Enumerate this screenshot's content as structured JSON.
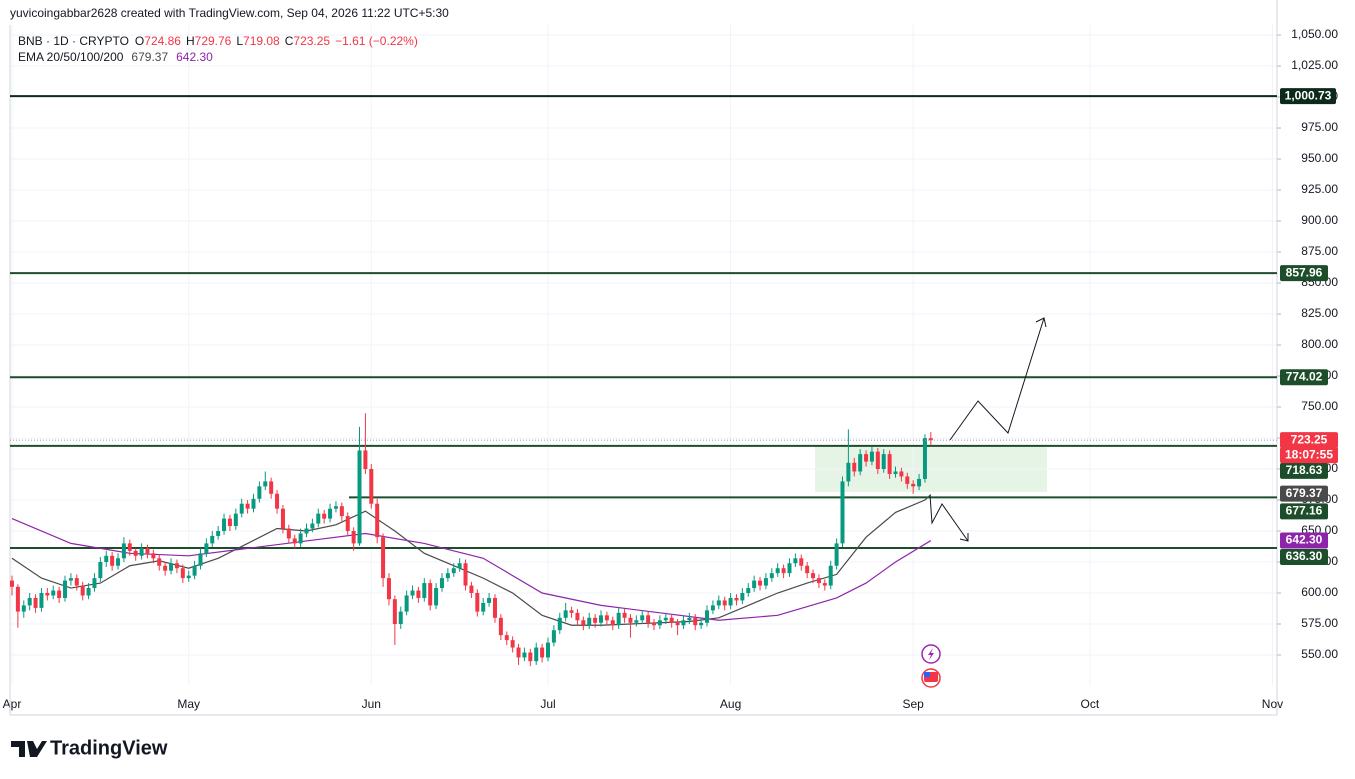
{
  "header": {
    "credit": "yuvicoingabbar2628 created with TradingView.com, Sep 04, 2026 11:22 UTC+5:30",
    "symbol": "BNB · 1D · CRYPTO",
    "ohlc": [
      {
        "key": "O",
        "value": "724.86"
      },
      {
        "key": "H",
        "value": "729.76"
      },
      {
        "key": "L",
        "value": "719.08"
      },
      {
        "key": "C",
        "value": "723.25"
      }
    ],
    "change": "−1.61 (−0.22%)",
    "ema_label": "EMA 20/50/100/200",
    "ema_values": [
      "679.37",
      "642.30"
    ],
    "brand": "TradingView"
  },
  "chart_data": {
    "type": "candlestick",
    "grid": true,
    "up_color": "#089981",
    "down_color": "#f23645",
    "xlim": [
      -0.34,
      214.77
    ],
    "ylim": [
      525.8,
      1058.1
    ],
    "xticks": [
      {
        "value": 0,
        "label": "Apr"
      },
      {
        "value": 30,
        "label": "May"
      },
      {
        "value": 61,
        "label": "Jun"
      },
      {
        "value": 91,
        "label": "Jul"
      },
      {
        "value": 122,
        "label": "Aug"
      },
      {
        "value": 153,
        "label": "Sep"
      },
      {
        "value": 183,
        "label": "Oct"
      },
      {
        "value": 214,
        "label": "Nov"
      }
    ],
    "yticks": [
      {
        "value": 550,
        "label": "550.00"
      },
      {
        "value": 575,
        "label": "575.00"
      },
      {
        "value": 600,
        "label": "600.00"
      },
      {
        "value": 625,
        "label": "625.00"
      },
      {
        "value": 650,
        "label": "650.00"
      },
      {
        "value": 675,
        "label": "675.00"
      },
      {
        "value": 700,
        "label": "700.00"
      },
      {
        "value": 725,
        "label": "725.00"
      },
      {
        "value": 750,
        "label": "750.00"
      },
      {
        "value": 775,
        "label": "775.00"
      },
      {
        "value": 800,
        "label": "800.00"
      },
      {
        "value": 825,
        "label": "825.00"
      },
      {
        "value": 850,
        "label": "850.00"
      },
      {
        "value": 875,
        "label": "875.00"
      },
      {
        "value": 900,
        "label": "900.00"
      },
      {
        "value": 925,
        "label": "925.00"
      },
      {
        "value": 950,
        "label": "950.00"
      },
      {
        "value": 975,
        "label": "975.00"
      },
      {
        "value": 1000,
        "label": "1,000.00"
      },
      {
        "value": 1025,
        "label": "1,025.00"
      },
      {
        "value": 1050,
        "label": "1,050.00"
      }
    ],
    "ohlc": [
      [
        610,
        614,
        598,
        605
      ],
      [
        605,
        607,
        572,
        585
      ],
      [
        585,
        594,
        580,
        590
      ],
      [
        590,
        600,
        586,
        596
      ],
      [
        596,
        599,
        584,
        588
      ],
      [
        588,
        604,
        585,
        600
      ],
      [
        600,
        604,
        594,
        598
      ],
      [
        598,
        606,
        595,
        602
      ],
      [
        602,
        605,
        592,
        596
      ],
      [
        596,
        614,
        593,
        610
      ],
      [
        610,
        616,
        606,
        612
      ],
      [
        612,
        615,
        602,
        606
      ],
      [
        606,
        609,
        594,
        598
      ],
      [
        598,
        608,
        595,
        604
      ],
      [
        604,
        616,
        601,
        612
      ],
      [
        612,
        629,
        609,
        625
      ],
      [
        625,
        634,
        621,
        630
      ],
      [
        630,
        633,
        618,
        622
      ],
      [
        622,
        632,
        619,
        628
      ],
      [
        628,
        645,
        625,
        640
      ],
      [
        640,
        643,
        630,
        634
      ],
      [
        634,
        636,
        626,
        630
      ],
      [
        630,
        640,
        627,
        636
      ],
      [
        636,
        639,
        628,
        632
      ],
      [
        632,
        635,
        624,
        628
      ],
      [
        628,
        631,
        618,
        622
      ],
      [
        622,
        625,
        614,
        618
      ],
      [
        618,
        628,
        615,
        624
      ],
      [
        624,
        627,
        616,
        620
      ],
      [
        620,
        623,
        608,
        612
      ],
      [
        612,
        618,
        609,
        614
      ],
      [
        614,
        626,
        611,
        622
      ],
      [
        622,
        636,
        619,
        632
      ],
      [
        632,
        644,
        629,
        640
      ],
      [
        640,
        650,
        637,
        646
      ],
      [
        646,
        654,
        643,
        650
      ],
      [
        650,
        664,
        647,
        660
      ],
      [
        660,
        663,
        650,
        654
      ],
      [
        654,
        668,
        651,
        664
      ],
      [
        664,
        676,
        661,
        672
      ],
      [
        672,
        675,
        664,
        668
      ],
      [
        668,
        680,
        665,
        676
      ],
      [
        676,
        690,
        673,
        686
      ],
      [
        686,
        698,
        683,
        690
      ],
      [
        690,
        693,
        676,
        680
      ],
      [
        680,
        683,
        664,
        668
      ],
      [
        668,
        671,
        648,
        652
      ],
      [
        652,
        655,
        640,
        644
      ],
      [
        644,
        647,
        636,
        640
      ],
      [
        640,
        652,
        637,
        648
      ],
      [
        648,
        656,
        645,
        652
      ],
      [
        652,
        660,
        649,
        656
      ],
      [
        656,
        668,
        653,
        664
      ],
      [
        664,
        667,
        656,
        660
      ],
      [
        660,
        672,
        657,
        668
      ],
      [
        668,
        674,
        665,
        670
      ],
      [
        670,
        673,
        658,
        662
      ],
      [
        662,
        665,
        646,
        650
      ],
      [
        650,
        653,
        634,
        640
      ],
      [
        640,
        734,
        638,
        715
      ],
      [
        715,
        745,
        696,
        700
      ],
      [
        700,
        704,
        668,
        672
      ],
      [
        672,
        676,
        640,
        645
      ],
      [
        645,
        648,
        605,
        612
      ],
      [
        612,
        616,
        590,
        595
      ],
      [
        595,
        598,
        558,
        575
      ],
      [
        575,
        589,
        571,
        585
      ],
      [
        585,
        602,
        582,
        598
      ],
      [
        598,
        606,
        595,
        602
      ],
      [
        602,
        605,
        592,
        596
      ],
      [
        596,
        612,
        593,
        608
      ],
      [
        608,
        611,
        586,
        590
      ],
      [
        590,
        608,
        587,
        604
      ],
      [
        604,
        616,
        601,
        612
      ],
      [
        612,
        620,
        609,
        616
      ],
      [
        616,
        624,
        613,
        620
      ],
      [
        620,
        628,
        617,
        624
      ],
      [
        624,
        627,
        602,
        606
      ],
      [
        606,
        609,
        596,
        600
      ],
      [
        600,
        603,
        581,
        585
      ],
      [
        585,
        596,
        582,
        592
      ],
      [
        592,
        600,
        589,
        596
      ],
      [
        596,
        599,
        576,
        580
      ],
      [
        580,
        583,
        562,
        566
      ],
      [
        566,
        569,
        558,
        562
      ],
      [
        562,
        565,
        552,
        556
      ],
      [
        556,
        559,
        542,
        548
      ],
      [
        548,
        556,
        545,
        552
      ],
      [
        552,
        555,
        541,
        545
      ],
      [
        545,
        560,
        542,
        556
      ],
      [
        556,
        559,
        544,
        548
      ],
      [
        548,
        564,
        545,
        560
      ],
      [
        560,
        574,
        557,
        570
      ],
      [
        570,
        584,
        567,
        580
      ],
      [
        580,
        592,
        577,
        586
      ],
      [
        586,
        589,
        580,
        584
      ],
      [
        584,
        587,
        574,
        578
      ],
      [
        578,
        581,
        570,
        574
      ],
      [
        574,
        584,
        571,
        580
      ],
      [
        580,
        583,
        572,
        576
      ],
      [
        576,
        586,
        573,
        582
      ],
      [
        582,
        585,
        574,
        578
      ],
      [
        578,
        581,
        570,
        574
      ],
      [
        574,
        588,
        571,
        584
      ],
      [
        584,
        587,
        576,
        580
      ],
      [
        580,
        583,
        564,
        576
      ],
      [
        576,
        582,
        573,
        578
      ],
      [
        578,
        586,
        575,
        582
      ],
      [
        582,
        585,
        572,
        576
      ],
      [
        576,
        579,
        570,
        574
      ],
      [
        574,
        582,
        571,
        578
      ],
      [
        578,
        584,
        575,
        580
      ],
      [
        580,
        583,
        572,
        576
      ],
      [
        576,
        579,
        566,
        574
      ],
      [
        574,
        582,
        571,
        578
      ],
      [
        578,
        584,
        575,
        580
      ],
      [
        580,
        583,
        570,
        574
      ],
      [
        574,
        580,
        571,
        576
      ],
      [
        576,
        590,
        573,
        586
      ],
      [
        586,
        594,
        583,
        590
      ],
      [
        590,
        598,
        587,
        594
      ],
      [
        594,
        597,
        586,
        590
      ],
      [
        590,
        600,
        587,
        596
      ],
      [
        596,
        599,
        590,
        594
      ],
      [
        594,
        604,
        591,
        600
      ],
      [
        600,
        608,
        597,
        604
      ],
      [
        604,
        614,
        601,
        610
      ],
      [
        610,
        613,
        602,
        606
      ],
      [
        606,
        616,
        603,
        612
      ],
      [
        612,
        620,
        609,
        616
      ],
      [
        616,
        624,
        613,
        620
      ],
      [
        620,
        623,
        612,
        616
      ],
      [
        616,
        628,
        613,
        624
      ],
      [
        624,
        632,
        621,
        628
      ],
      [
        628,
        631,
        618,
        622
      ],
      [
        622,
        625,
        612,
        616
      ],
      [
        616,
        619,
        608,
        612
      ],
      [
        612,
        615,
        604,
        608
      ],
      [
        608,
        611,
        602,
        606
      ],
      [
        606,
        626,
        603,
        622
      ],
      [
        622,
        644,
        619,
        640
      ],
      [
        640,
        694,
        637,
        690
      ],
      [
        690,
        732,
        686,
        705
      ],
      [
        705,
        709,
        694,
        698
      ],
      [
        698,
        716,
        695,
        712
      ],
      [
        712,
        715,
        702,
        706
      ],
      [
        706,
        718,
        703,
        714
      ],
      [
        714,
        717,
        696,
        700
      ],
      [
        700,
        716,
        697,
        712
      ],
      [
        712,
        715,
        692,
        696
      ],
      [
        696,
        702,
        693,
        698
      ],
      [
        698,
        701,
        690,
        694
      ],
      [
        694,
        697,
        684,
        688
      ],
      [
        688,
        691,
        680,
        686
      ],
      [
        686,
        696,
        683,
        692
      ],
      [
        692,
        728,
        689,
        724.86
      ],
      [
        724.86,
        729.76,
        719.08,
        723.25
      ]
    ],
    "series": [
      {
        "color": "#4a4a4a",
        "x": [
          0,
          5,
          10,
          15,
          20,
          25,
          30,
          35,
          40,
          45,
          50,
          55,
          60,
          65,
          70,
          75,
          80,
          85,
          90,
          95,
          100,
          105,
          110,
          115,
          120,
          125,
          130,
          135,
          140,
          145,
          150,
          155,
          156
        ],
        "values": [
          628,
          612,
          604,
          608,
          622,
          626,
          620,
          628,
          640,
          652,
          650,
          655,
          666,
          650,
          632,
          622,
          612,
          600,
          582,
          574,
          574,
          575,
          576,
          577,
          580,
          590,
          600,
          608,
          615,
          645,
          665,
          675,
          679.37
        ]
      },
      {
        "color": "#8e24aa",
        "x": [
          0,
          10,
          20,
          30,
          40,
          50,
          60,
          70,
          80,
          90,
          100,
          110,
          120,
          130,
          140,
          145,
          150,
          156
        ],
        "values": [
          660,
          640,
          632,
          630,
          636,
          642,
          648,
          640,
          628,
          600,
          590,
          584,
          578,
          582,
          596,
          608,
          625,
          642.3
        ]
      }
    ],
    "last_price": {
      "value": 723.25,
      "label": "723.25",
      "countdown": "18:07:55",
      "color": "#f23645"
    },
    "levels": [
      {
        "value": 1000.73,
        "label": "1,000.73",
        "color": "#0b2a1c"
      },
      {
        "value": 857.96,
        "label": "857.96",
        "color": "#1e4d2b"
      },
      {
        "value": 774.02,
        "label": "774.02",
        "color": "#1e4d2b"
      },
      {
        "value": 718.63,
        "label": "718.63",
        "color": "#1e4d2b"
      },
      {
        "value": 677.16,
        "label": "677.16",
        "color": "#1e4d2b"
      },
      {
        "value": 636.3,
        "label": "636.30",
        "color": "#1e4d2b"
      }
    ]
  }
}
